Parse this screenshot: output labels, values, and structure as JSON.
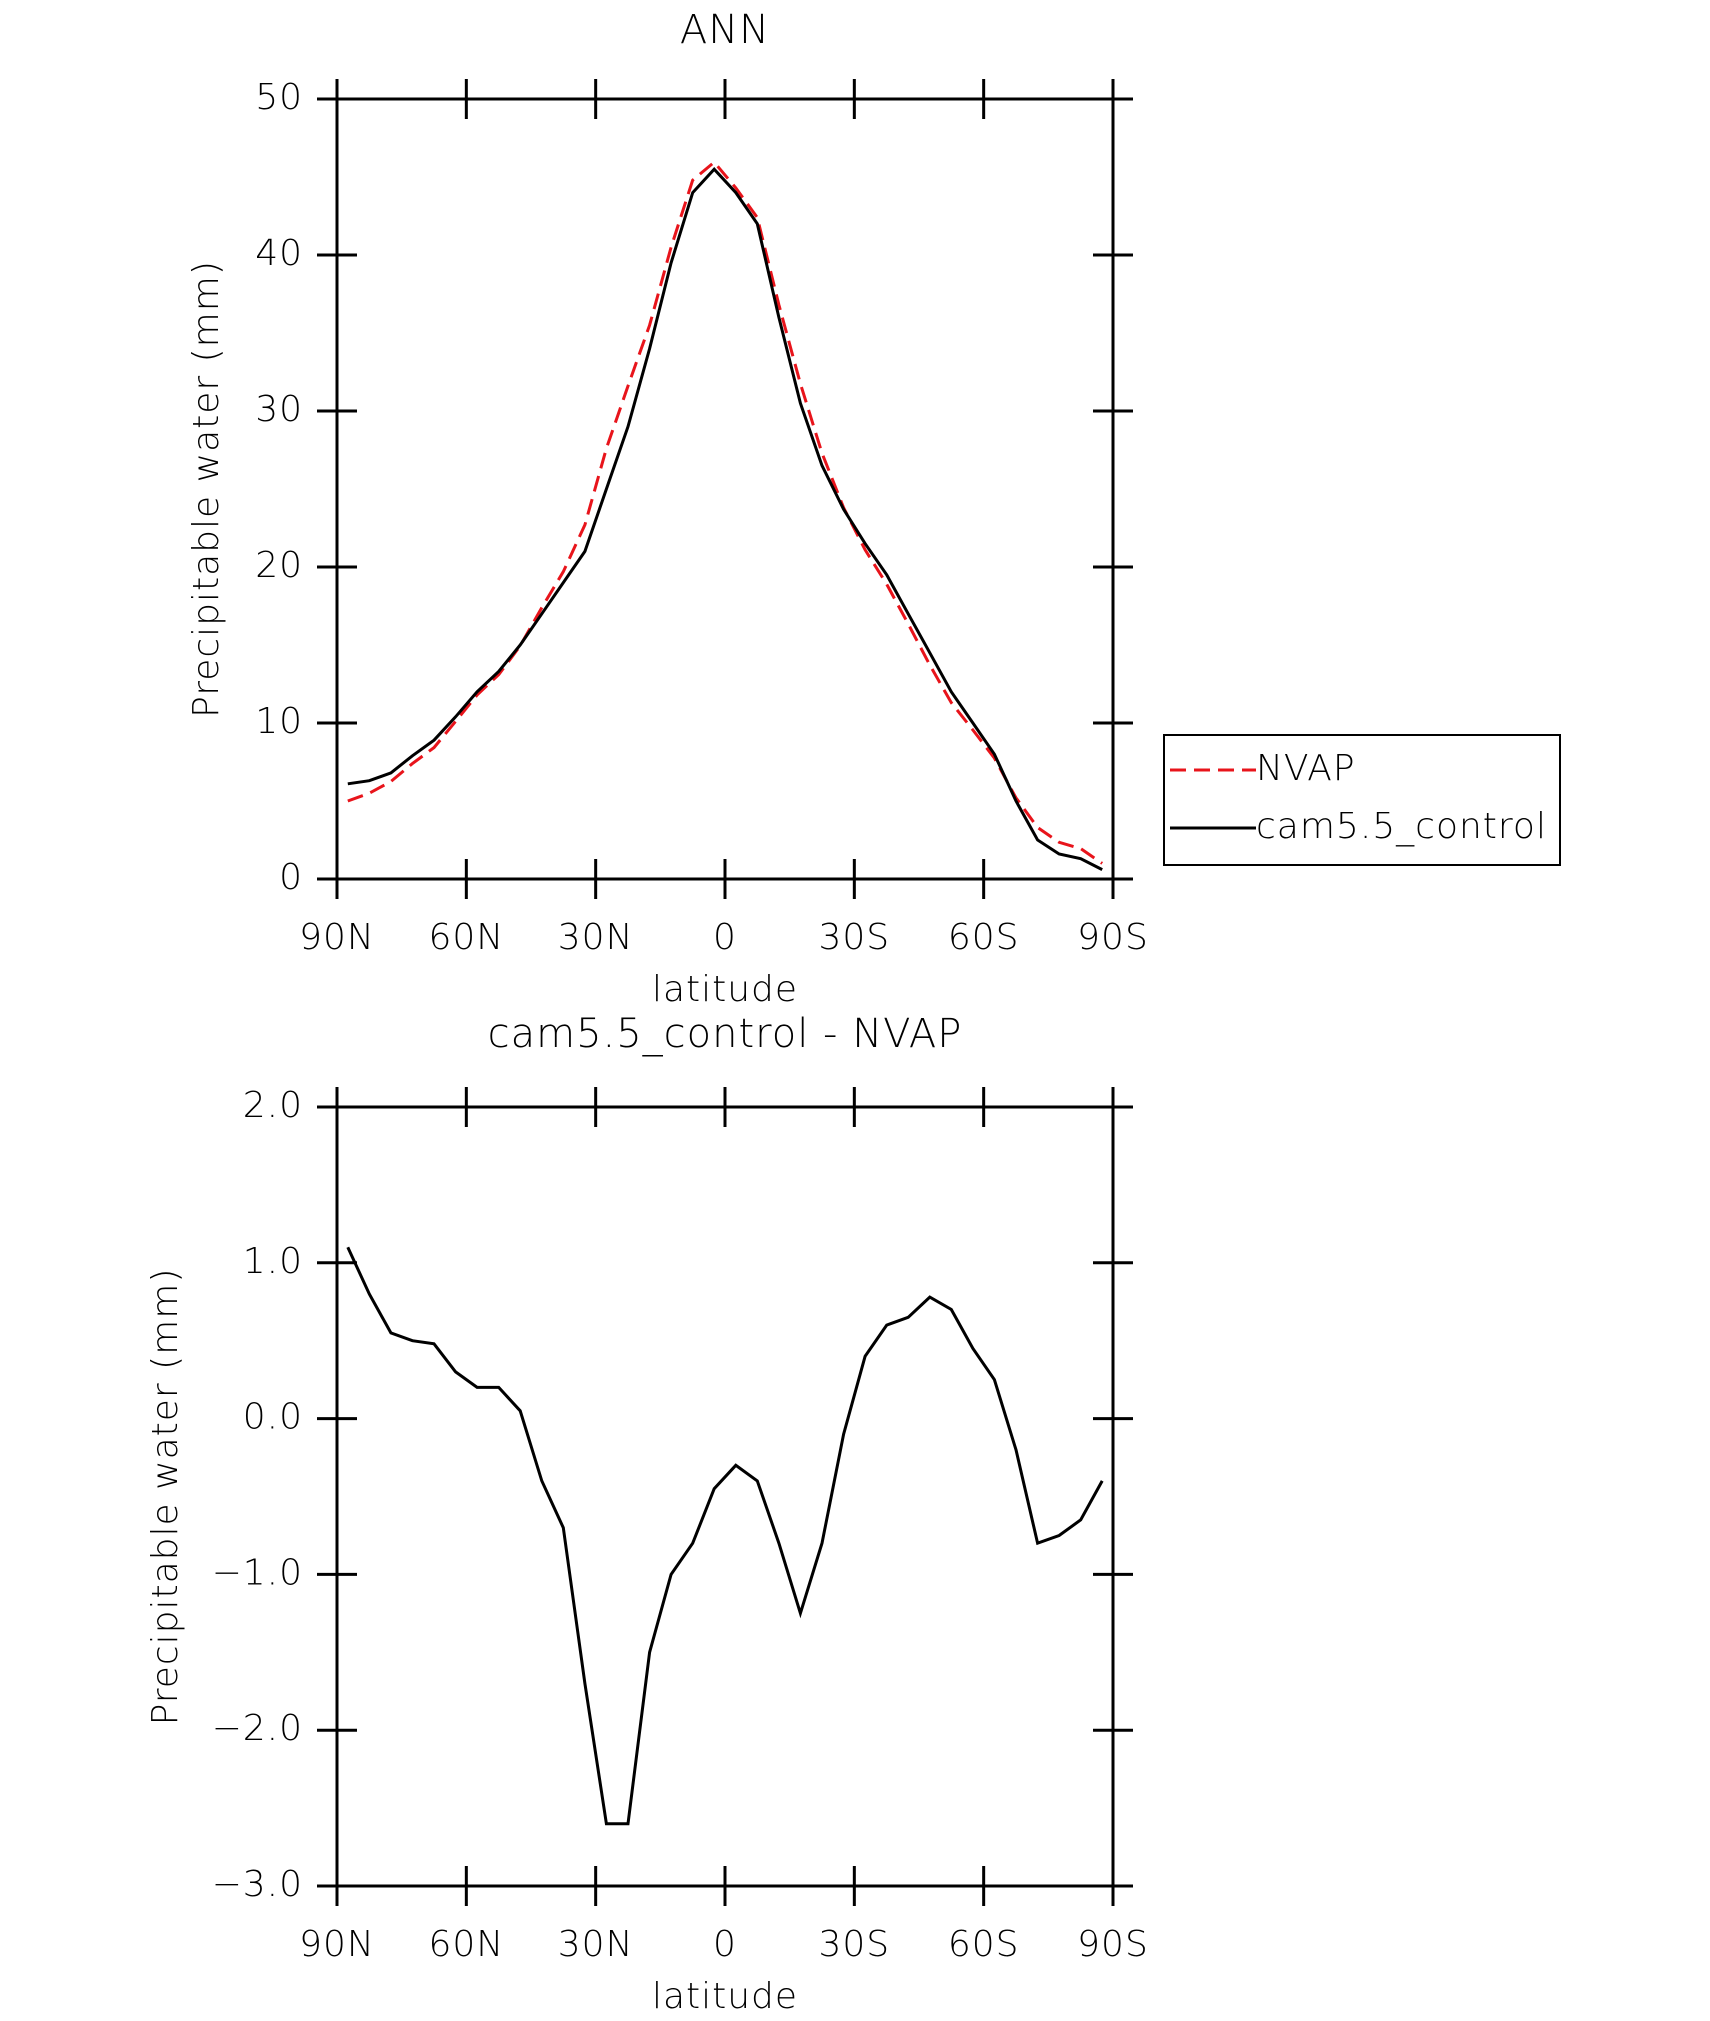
{
  "chart_data": [
    {
      "type": "line",
      "title": "ANN",
      "x_label": "latitude",
      "y_label": "Precipitable water (mm)",
      "x": [
        87.5,
        82.5,
        77.5,
        72.5,
        67.5,
        62.5,
        57.5,
        52.5,
        47.5,
        42.5,
        37.5,
        32.5,
        27.5,
        22.5,
        17.5,
        12.5,
        7.5,
        2.5,
        -2.5,
        -7.5,
        -12.5,
        -17.5,
        -22.5,
        -27.5,
        -32.5,
        -37.5,
        -42.5,
        -47.5,
        -52.5,
        -57.5,
        -62.5,
        -67.5,
        -72.5,
        -77.5,
        -82.5,
        -87.5
      ],
      "series": [
        {
          "name": "NVAP",
          "color": "#e8141b",
          "dash": true,
          "values": [
            5.0,
            5.5,
            6.25,
            7.4,
            8.42,
            10.1,
            11.8,
            13.1,
            14.95,
            17.4,
            19.7,
            22.7,
            27.6,
            31.6,
            35.5,
            40.5,
            44.8,
            45.95,
            44.3,
            42.4,
            36.8,
            31.75,
            27.3,
            23.8,
            21.1,
            18.9,
            16.35,
            13.72,
            11.3,
            9.55,
            7.75,
            5.2,
            3.3,
            2.35,
            1.95,
            1.0
          ]
        },
        {
          "name": "cam5.5_control",
          "color": "#000000",
          "dash": false,
          "values": [
            6.1,
            6.3,
            6.8,
            7.9,
            8.9,
            10.4,
            12.0,
            13.3,
            15.0,
            17.0,
            19.0,
            21.0,
            25.0,
            29.0,
            34.0,
            39.5,
            44.0,
            45.5,
            44.0,
            42.0,
            36.0,
            30.5,
            26.5,
            23.7,
            21.5,
            19.5,
            17.0,
            14.5,
            12.0,
            10.0,
            8.0,
            5.0,
            2.5,
            1.6,
            1.3,
            0.6
          ]
        }
      ],
      "xlim": [
        90,
        -90
      ],
      "xticks": [
        {
          "value": 90,
          "label": "90N"
        },
        {
          "value": 60,
          "label": "60N"
        },
        {
          "value": 30,
          "label": "30N"
        },
        0,
        {
          "value": -30,
          "label": "30S"
        },
        {
          "value": -60,
          "label": "60S"
        },
        {
          "value": -90,
          "label": "90S"
        }
      ],
      "ylim": [
        0,
        50
      ],
      "yticks": [
        0,
        10,
        20,
        30,
        40,
        50
      ],
      "legend": "outside-right"
    },
    {
      "type": "line",
      "title": "cam5.5_control - NVAP",
      "x_label": "latitude",
      "y_label": "Precipitable water (mm)",
      "x": [
        87.5,
        82.5,
        77.5,
        72.5,
        67.5,
        62.5,
        57.5,
        52.5,
        47.5,
        42.5,
        37.5,
        32.5,
        27.5,
        22.5,
        17.5,
        12.5,
        7.5,
        2.5,
        -2.5,
        -7.5,
        -12.5,
        -17.5,
        -22.5,
        -27.5,
        -32.5,
        -37.5,
        -42.5,
        -47.5,
        -52.5,
        -57.5,
        -62.5,
        -67.5,
        -72.5,
        -77.5,
        -82.5,
        -87.5
      ],
      "series": [
        {
          "color": "#000000",
          "dash": false,
          "values": [
            1.1,
            0.8,
            0.55,
            0.5,
            0.48,
            0.3,
            0.2,
            0.2,
            0.05,
            -0.4,
            -0.7,
            -1.7,
            -2.6,
            -2.6,
            -1.5,
            -1.0,
            -0.8,
            -0.45,
            -0.3,
            -0.4,
            -0.8,
            -1.25,
            -0.8,
            -0.1,
            0.4,
            0.6,
            0.65,
            0.78,
            0.7,
            0.45,
            0.25,
            -0.2,
            -0.8,
            -0.75,
            -0.65,
            -0.4
          ]
        }
      ],
      "xlim": [
        90,
        -90
      ],
      "xticks": [
        {
          "value": 90,
          "label": "90N"
        },
        {
          "value": 60,
          "label": "60N"
        },
        {
          "value": 30,
          "label": "30N"
        },
        0,
        {
          "value": -30,
          "label": "30S"
        },
        {
          "value": -60,
          "label": "60S"
        },
        {
          "value": -90,
          "label": "90S"
        }
      ],
      "ylim": [
        -3,
        2
      ],
      "yticks": [
        {
          "value": -3,
          "label": "−3.0"
        },
        {
          "value": -2,
          "label": "−2.0"
        },
        {
          "value": -1,
          "label": "−1.0"
        },
        {
          "value": 0,
          "label": "0.0"
        },
        {
          "value": 1,
          "label": "1.0"
        },
        {
          "value": 2,
          "label": "2.0"
        }
      ]
    }
  ]
}
